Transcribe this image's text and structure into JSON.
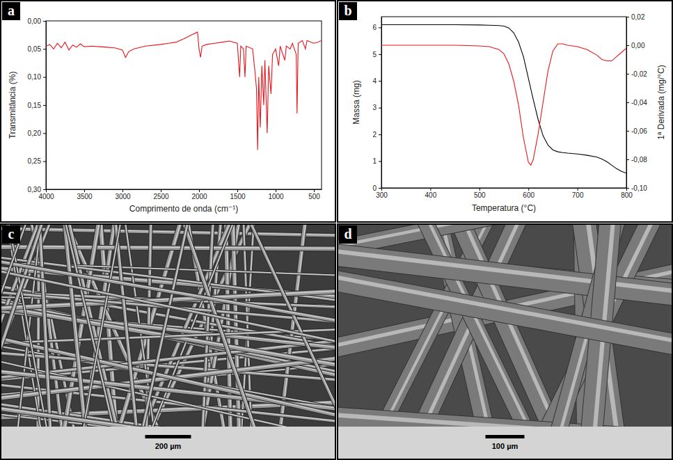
{
  "chart_data": [
    {
      "type": "line",
      "panel_label": "a",
      "x_label": "Comprimento de onda (cm⁻¹)",
      "y_label": "Transmitância (%)",
      "x": [
        4000,
        3950,
        3900,
        3850,
        3800,
        3750,
        3700,
        3650,
        3600,
        3550,
        3500,
        3400,
        3300,
        3200,
        3100,
        3000,
        2960,
        2920,
        2850,
        2700,
        2500,
        2400,
        2300,
        2200,
        2100,
        2020,
        2000,
        1980,
        1960,
        1900,
        1800,
        1700,
        1600,
        1500,
        1470,
        1455,
        1420,
        1400,
        1385,
        1300,
        1270,
        1250,
        1235,
        1220,
        1200,
        1180,
        1155,
        1140,
        1110,
        1090,
        1060,
        1040,
        1000,
        960,
        940,
        880,
        860,
        810,
        780,
        730,
        720,
        705,
        650,
        610,
        590,
        500,
        450,
        400
      ],
      "values": [
        0.045,
        0.042,
        0.05,
        0.04,
        0.048,
        0.038,
        0.052,
        0.043,
        0.047,
        0.041,
        0.046,
        0.045,
        0.046,
        0.047,
        0.048,
        0.052,
        0.065,
        0.055,
        0.05,
        0.045,
        0.042,
        0.04,
        0.038,
        0.032,
        0.025,
        0.02,
        0.05,
        0.065,
        0.045,
        0.042,
        0.04,
        0.038,
        0.036,
        0.04,
        0.1,
        0.045,
        0.05,
        0.1,
        0.045,
        0.05,
        0.09,
        0.12,
        0.23,
        0.1,
        0.19,
        0.08,
        0.15,
        0.07,
        0.2,
        0.08,
        0.13,
        0.06,
        0.05,
        0.08,
        0.045,
        0.07,
        0.045,
        0.05,
        0.04,
        0.06,
        0.165,
        0.04,
        0.035,
        0.05,
        0.035,
        0.04,
        0.038,
        0.035
      ],
      "color": "#e8141b",
      "xlim": [
        4000,
        400
      ],
      "xticks": [
        4000,
        3500,
        3000,
        2500,
        2000,
        1500,
        1000,
        500
      ],
      "ylim": [
        0.3,
        0
      ],
      "yticks": [
        {
          "value": 0,
          "label": "0,00"
        },
        {
          "value": 0.05,
          "label": "0,05"
        },
        {
          "value": 0.1,
          "label": "0,10"
        },
        {
          "value": 0.15,
          "label": "0,15"
        },
        {
          "value": 0.2,
          "label": "0,20"
        },
        {
          "value": 0.25,
          "label": "0,25"
        },
        {
          "value": 0.3,
          "label": "0,30"
        }
      ]
    },
    {
      "type": "line",
      "panel_label": "b",
      "x_label": "Temperatura (°C)",
      "y_label": "Massa (mg)",
      "y2_label": "1ª Derivada (mg/°C)",
      "x": [
        300,
        350,
        400,
        450,
        500,
        520,
        540,
        550,
        560,
        570,
        580,
        590,
        600,
        605,
        610,
        620,
        630,
        640,
        650,
        660,
        670,
        680,
        700,
        720,
        740,
        750,
        760,
        770,
        780,
        790,
        800
      ],
      "series": [
        {
          "color": "#000000",
          "values": [
            6.1,
            6.1,
            6.1,
            6.1,
            6.09,
            6.08,
            6.07,
            6.05,
            5.98,
            5.8,
            5.45,
            4.9,
            4.1,
            3.7,
            3.3,
            2.55,
            1.95,
            1.6,
            1.42,
            1.35,
            1.32,
            1.3,
            1.27,
            1.22,
            1.15,
            1.08,
            0.98,
            0.85,
            0.72,
            0.62,
            0.55
          ]
        },
        {
          "color": "#e8141b",
          "axis": "y2",
          "values": [
            0,
            0,
            0,
            0,
            -0.0005,
            -0.001,
            -0.003,
            -0.006,
            -0.013,
            -0.025,
            -0.042,
            -0.065,
            -0.082,
            -0.084,
            -0.08,
            -0.062,
            -0.04,
            -0.018,
            -0.004,
            0.001,
            0.001,
            0,
            -0.001,
            -0.003,
            -0.007,
            -0.01,
            -0.011,
            -0.011,
            -0.008,
            -0.005,
            -0.002
          ]
        }
      ],
      "xlim": [
        300,
        800
      ],
      "xticks": [
        300,
        400,
        500,
        600,
        700,
        800
      ],
      "ylim": [
        0,
        6.4
      ],
      "yticks": [
        0,
        1,
        2,
        3,
        4,
        5,
        6
      ],
      "y2lim": [
        -0.1,
        0.02
      ],
      "y2ticks": [
        {
          "value": 0.02,
          "label": "0,02"
        },
        {
          "value": 0,
          "label": "0,00"
        },
        {
          "value": -0.02,
          "label": "-0,02"
        },
        {
          "value": -0.04,
          "label": "-0,04"
        },
        {
          "value": -0.06,
          "label": "-0,06"
        },
        {
          "value": -0.08,
          "label": "-0,08"
        },
        {
          "value": -0.1,
          "label": "-0,10"
        }
      ]
    }
  ],
  "images": [
    {
      "type": "image",
      "panel_label": "c",
      "scale_bar": "200 µm"
    },
    {
      "type": "image",
      "panel_label": "d",
      "scale_bar": "100 µm"
    }
  ]
}
